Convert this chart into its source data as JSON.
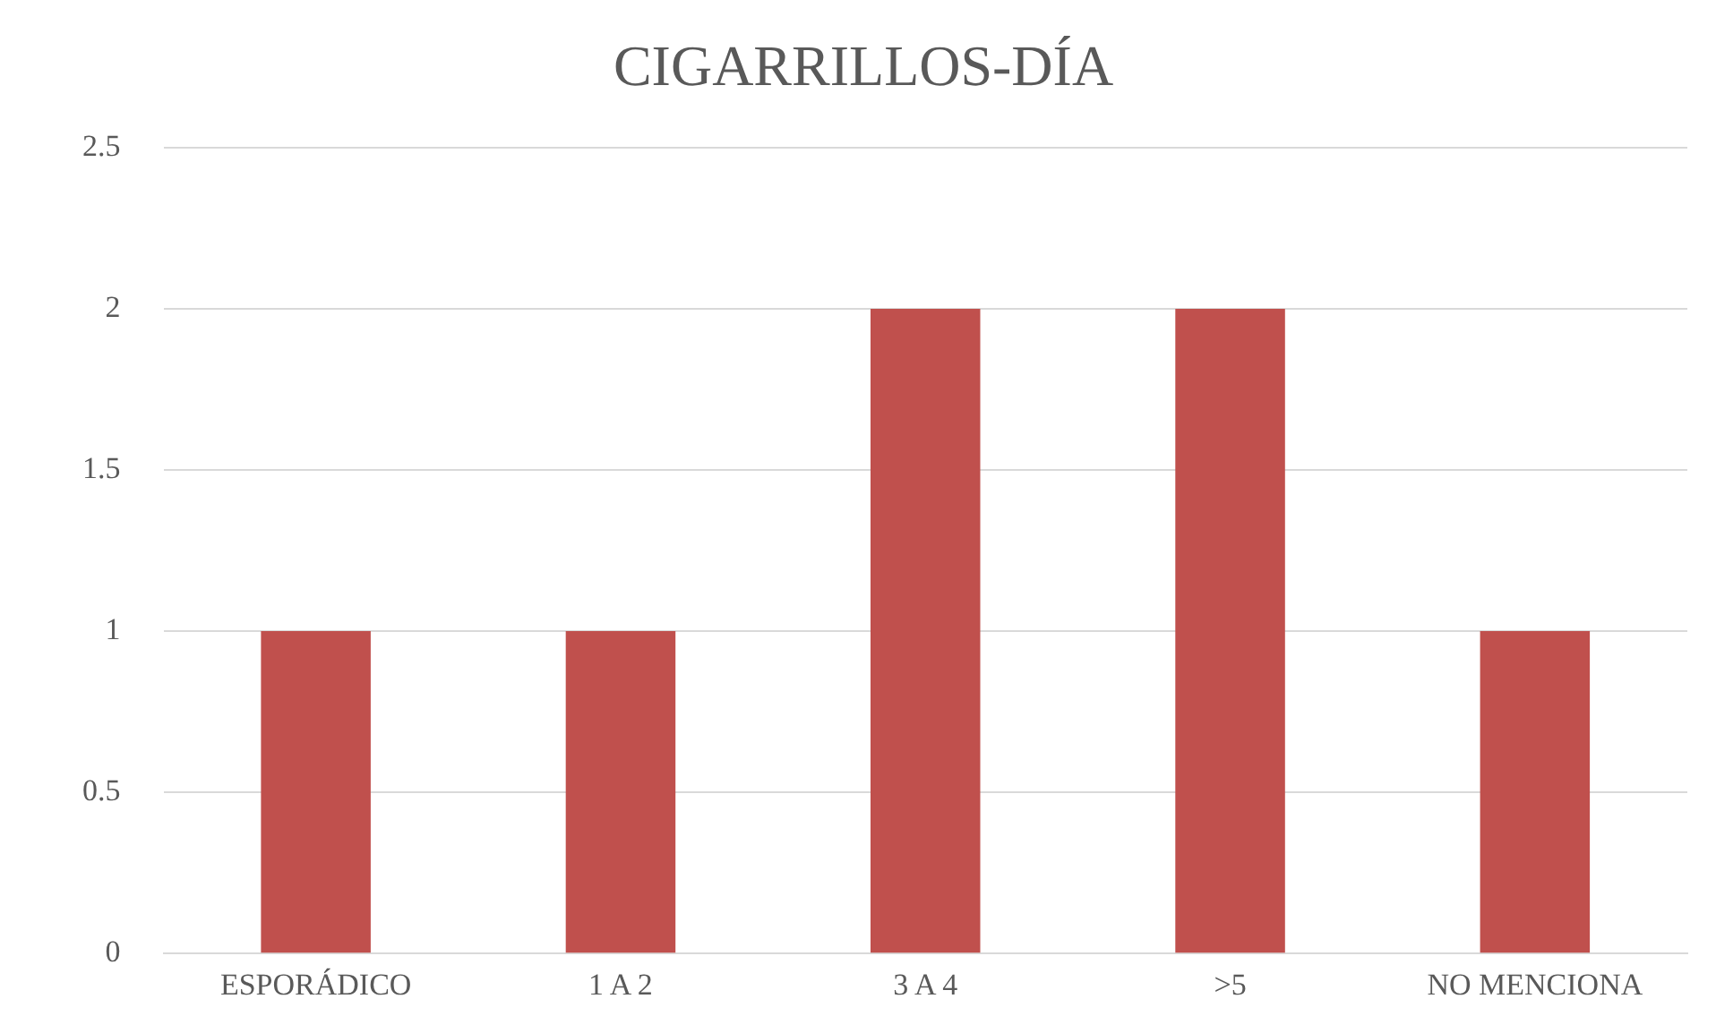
{
  "chart_data": {
    "type": "bar",
    "title": "CIGARRILLOS-DÍA",
    "categories": [
      "ESPORÁDICO",
      "1 A 2",
      "3 A 4",
      ">5",
      "NO MENCIONA"
    ],
    "values": [
      1,
      1,
      2,
      2,
      1
    ],
    "color": "#c0504d",
    "ylim": [
      0,
      2.5
    ],
    "yticks": [
      0,
      0.5,
      1,
      1.5,
      2,
      2.5
    ],
    "grid": "y",
    "legend": false
  }
}
